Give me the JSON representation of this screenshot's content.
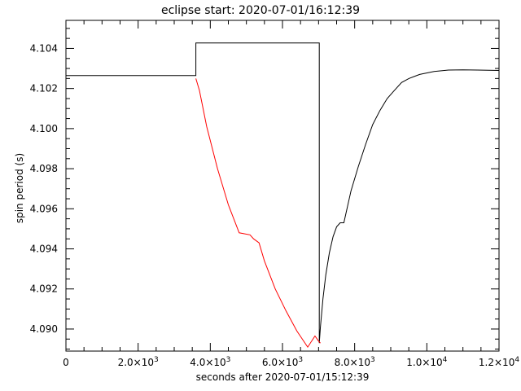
{
  "chart_data": {
    "type": "line",
    "title": "eclipse start: 2020-07-01/16:12:39",
    "xlabel": "seconds after 2020-07-01/15:12:39",
    "ylabel": "spin period (s)",
    "xlim": [
      0,
      12000
    ],
    "ylim": [
      4.0889,
      4.1054
    ],
    "grid": false,
    "x_ticks": [
      {
        "value": 0,
        "mant": "0",
        "exp": ""
      },
      {
        "value": 2000,
        "mant": "2.0×10",
        "exp": "3"
      },
      {
        "value": 4000,
        "mant": "4.0×10",
        "exp": "3"
      },
      {
        "value": 6000,
        "mant": "6.0×10",
        "exp": "3"
      },
      {
        "value": 8000,
        "mant": "8.0×10",
        "exp": "3"
      },
      {
        "value": 10000,
        "mant": "1.0×10",
        "exp": "4"
      },
      {
        "value": 12000,
        "mant": "1.2×10",
        "exp": "4"
      }
    ],
    "y_ticks": [
      {
        "value": 4.09,
        "label": "4.090"
      },
      {
        "value": 4.092,
        "label": "4.092"
      },
      {
        "value": 4.094,
        "label": "4.094"
      },
      {
        "value": 4.096,
        "label": "4.096"
      },
      {
        "value": 4.098,
        "label": "4.098"
      },
      {
        "value": 4.1,
        "label": "4.100"
      },
      {
        "value": 4.102,
        "label": "4.102"
      },
      {
        "value": 4.104,
        "label": "4.104"
      }
    ],
    "series": [
      {
        "color": "#000000",
        "x": [
          0,
          3560,
          3560,
          3600,
          3600,
          7020,
          7020,
          7050,
          7120,
          7200,
          7300,
          7400,
          7500,
          7600,
          7700,
          7800,
          7900,
          8100,
          8300,
          8500,
          8700,
          8900,
          9100,
          9300,
          9500,
          9800,
          10200,
          10600,
          11000,
          11400,
          12000
        ],
        "y": [
          4.10265,
          4.10265,
          4.10265,
          4.10265,
          4.10427,
          4.10427,
          4.0893,
          4.0901,
          4.0915,
          4.0927,
          4.0938,
          4.0946,
          4.0951,
          4.0953,
          4.0953,
          4.0961,
          4.0969,
          4.0981,
          4.0992,
          4.1002,
          4.1009,
          4.1015,
          4.1019,
          4.1023,
          4.1025,
          4.1027,
          4.10285,
          4.10292,
          4.10293,
          4.10292,
          4.1029
        ]
      },
      {
        "color": "#ff0000",
        "x": [
          3600,
          3700,
          3900,
          4200,
          4500,
          4800,
          5100,
          5200,
          5350,
          5500,
          5800,
          6100,
          6400,
          6700,
          6900,
          7000,
          7050
        ],
        "y": [
          4.1025,
          4.1019,
          4.1001,
          4.098,
          4.0962,
          4.0948,
          4.0947,
          4.0945,
          4.0943,
          4.0934,
          4.092,
          4.0909,
          4.0899,
          4.0891,
          4.08965,
          4.0894,
          4.0893
        ]
      }
    ]
  }
}
